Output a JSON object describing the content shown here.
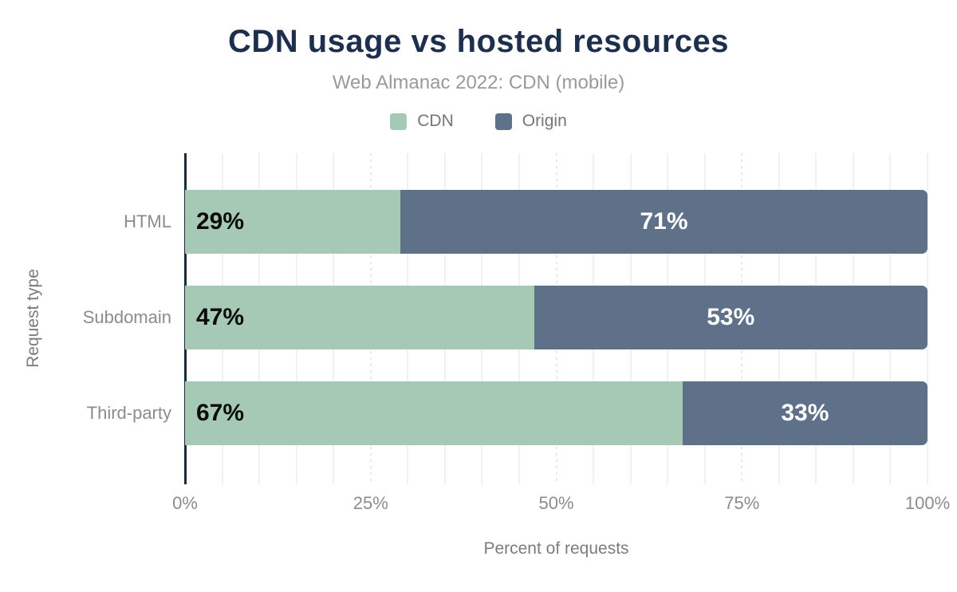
{
  "title": "CDN usage vs hosted resources",
  "subtitle": "Web Almanac 2022: CDN (mobile)",
  "legend": {
    "items": [
      {
        "label": "CDN",
        "color": "#a5c9b4"
      },
      {
        "label": "Origin",
        "color": "#5f7089"
      }
    ]
  },
  "chart_data": {
    "type": "bar",
    "orientation": "horizontal",
    "stacked": true,
    "title": "CDN usage vs hosted resources",
    "subtitle": "Web Almanac 2022: CDN (mobile)",
    "categories": [
      "HTML",
      "Subdomain",
      "Third-party"
    ],
    "series": [
      {
        "name": "CDN",
        "color": "#a5c9b4",
        "values": [
          29,
          47,
          67
        ]
      },
      {
        "name": "Origin",
        "color": "#5f7089",
        "values": [
          71,
          53,
          33
        ]
      }
    ],
    "data_labels": [
      [
        "29%",
        "71%"
      ],
      [
        "47%",
        "53%"
      ],
      [
        "67%",
        "33%"
      ]
    ],
    "xlabel": "Percent of requests",
    "ylabel": "Request type",
    "xlim": [
      0,
      100
    ],
    "xticks": [
      {
        "label": "0%",
        "value": 0
      },
      {
        "label": "25%",
        "value": 25
      },
      {
        "label": "50%",
        "value": 50
      },
      {
        "label": "75%",
        "value": 75
      },
      {
        "label": "100%",
        "value": 100
      }
    ],
    "grid": "vertical, minor every 5%, dotted at quarters",
    "legend_position": "top"
  },
  "colors": {
    "title": "#1e2f4e",
    "subtitle": "#9a9a9a",
    "axis_line": "#1b2a41",
    "gridline": "#f1f1f1",
    "tick_text": "#8c8c8c",
    "cdn_green": "#a5c9b4",
    "origin_slate": "#5f7089",
    "label_on_green": "#0b0b0b",
    "label_on_slate": "#ffffff"
  }
}
